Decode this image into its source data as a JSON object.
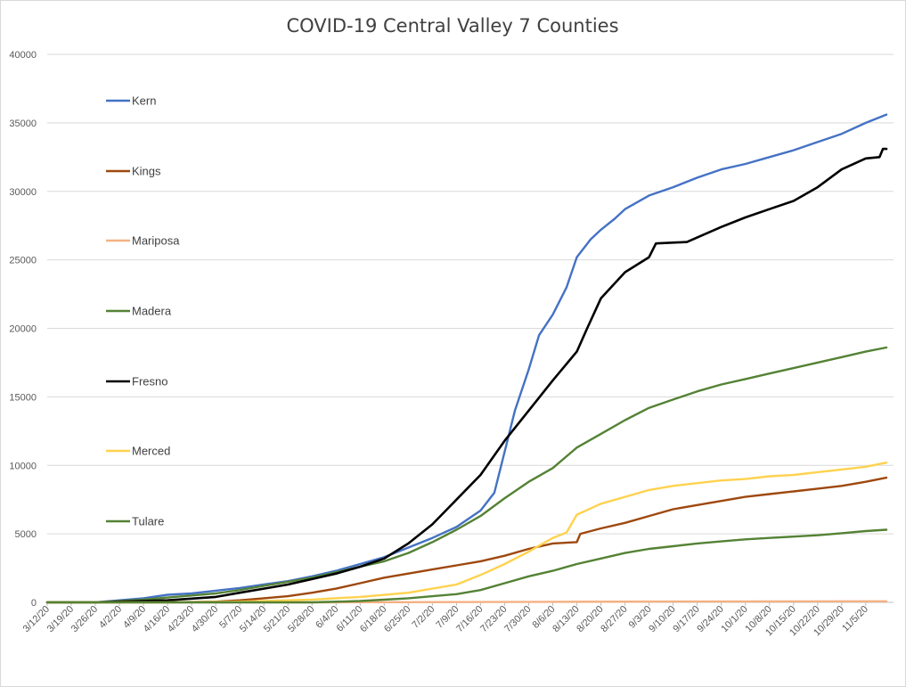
{
  "chart_data": {
    "type": "line",
    "title": "COVID-19 Central Valley 7 Counties",
    "xlabel": "",
    "ylabel": "",
    "ylim": [
      0,
      40000
    ],
    "yticks": [
      0,
      5000,
      10000,
      15000,
      20000,
      25000,
      30000,
      35000,
      40000
    ],
    "x_start": "3/12/20",
    "x_end": "11/11/20",
    "xtick_labels": [
      "3/12/20",
      "3/19/20",
      "3/26/20",
      "4/2/20",
      "4/9/20",
      "4/16/20",
      "4/23/20",
      "4/30/20",
      "5/7/20",
      "5/14/20",
      "5/21/20",
      "5/28/20",
      "6/4/20",
      "6/11/20",
      "6/18/20",
      "6/25/20",
      "7/2/20",
      "7/9/20",
      "7/16/20",
      "7/23/20",
      "7/30/20",
      "8/6/20",
      "8/13/20",
      "8/20/20",
      "8/27/20",
      "9/3/20",
      "9/10/20",
      "9/17/20",
      "9/24/20",
      "10/1/20",
      "10/8/20",
      "10/15/20",
      "10/22/20",
      "10/29/20",
      "11/5/20"
    ],
    "grid": true,
    "legend_position": "left-inside",
    "series": [
      {
        "name": "Kern",
        "color": "#4472c4",
        "points": [
          [
            "3/12/20",
            0
          ],
          [
            "3/26/20",
            0
          ],
          [
            "4/2/20",
            150
          ],
          [
            "4/9/20",
            300
          ],
          [
            "4/16/20",
            550
          ],
          [
            "4/23/20",
            650
          ],
          [
            "4/30/20",
            850
          ],
          [
            "5/7/20",
            1050
          ],
          [
            "5/14/20",
            1300
          ],
          [
            "5/21/20",
            1550
          ],
          [
            "5/28/20",
            1900
          ],
          [
            "6/4/20",
            2300
          ],
          [
            "6/11/20",
            2800
          ],
          [
            "6/18/20",
            3300
          ],
          [
            "6/25/20",
            4000
          ],
          [
            "7/2/20",
            4700
          ],
          [
            "7/9/20",
            5500
          ],
          [
            "7/16/20",
            6700
          ],
          [
            "7/20/20",
            8000
          ],
          [
            "7/23/20",
            11000
          ],
          [
            "7/26/20",
            14000
          ],
          [
            "7/30/20",
            17000
          ],
          [
            "8/2/20",
            19500
          ],
          [
            "8/6/20",
            21000
          ],
          [
            "8/10/20",
            23000
          ],
          [
            "8/13/20",
            25200
          ],
          [
            "8/17/20",
            26500
          ],
          [
            "8/20/20",
            27200
          ],
          [
            "8/24/20",
            28000
          ],
          [
            "8/27/20",
            28700
          ],
          [
            "9/3/20",
            29700
          ],
          [
            "9/10/20",
            30300
          ],
          [
            "9/17/20",
            31000
          ],
          [
            "9/24/20",
            31600
          ],
          [
            "10/1/20",
            32000
          ],
          [
            "10/8/20",
            32500
          ],
          [
            "10/15/20",
            33000
          ],
          [
            "10/22/20",
            33600
          ],
          [
            "10/29/20",
            34200
          ],
          [
            "11/5/20",
            35000
          ],
          [
            "11/11/20",
            35600
          ]
        ]
      },
      {
        "name": "Kings",
        "color": "#9e480e",
        "points": [
          [
            "3/12/20",
            0
          ],
          [
            "4/16/20",
            0
          ],
          [
            "4/30/20",
            50
          ],
          [
            "5/7/20",
            150
          ],
          [
            "5/14/20",
            300
          ],
          [
            "5/21/20",
            450
          ],
          [
            "5/28/20",
            700
          ],
          [
            "6/4/20",
            1000
          ],
          [
            "6/11/20",
            1400
          ],
          [
            "6/18/20",
            1800
          ],
          [
            "6/25/20",
            2100
          ],
          [
            "7/2/20",
            2400
          ],
          [
            "7/9/20",
            2700
          ],
          [
            "7/16/20",
            3000
          ],
          [
            "7/23/20",
            3400
          ],
          [
            "7/30/20",
            3900
          ],
          [
            "8/6/20",
            4300
          ],
          [
            "8/13/20",
            4400
          ],
          [
            "8/14/20",
            5000
          ],
          [
            "8/20/20",
            5400
          ],
          [
            "8/27/20",
            5800
          ],
          [
            "9/3/20",
            6300
          ],
          [
            "9/10/20",
            6800
          ],
          [
            "9/17/20",
            7100
          ],
          [
            "9/24/20",
            7400
          ],
          [
            "10/1/20",
            7700
          ],
          [
            "10/8/20",
            7900
          ],
          [
            "10/15/20",
            8100
          ],
          [
            "10/22/20",
            8300
          ],
          [
            "10/29/20",
            8500
          ],
          [
            "11/5/20",
            8800
          ],
          [
            "11/11/20",
            9100
          ]
        ]
      },
      {
        "name": "Mariposa",
        "color": "#f4b183",
        "points": [
          [
            "3/12/20",
            0
          ],
          [
            "5/28/20",
            0
          ],
          [
            "7/9/20",
            20
          ],
          [
            "8/6/20",
            40
          ],
          [
            "9/10/20",
            60
          ],
          [
            "10/15/20",
            70
          ],
          [
            "11/11/20",
            80
          ]
        ]
      },
      {
        "name": "Madera",
        "color": "#548235",
        "points": [
          [
            "3/12/20",
            0
          ],
          [
            "3/26/20",
            0
          ],
          [
            "4/2/20",
            100
          ],
          [
            "4/9/20",
            200
          ],
          [
            "4/16/20",
            350
          ],
          [
            "4/23/20",
            500
          ],
          [
            "4/30/20",
            650
          ],
          [
            "5/7/20",
            900
          ],
          [
            "5/14/20",
            1200
          ],
          [
            "5/21/20",
            1500
          ],
          [
            "5/28/20",
            1800
          ],
          [
            "6/4/20",
            2200
          ],
          [
            "6/11/20",
            2600
          ],
          [
            "6/18/20",
            3000
          ],
          [
            "6/25/20",
            3600
          ],
          [
            "7/2/20",
            4400
          ],
          [
            "7/9/20",
            5300
          ],
          [
            "7/16/20",
            6300
          ],
          [
            "7/23/20",
            7600
          ],
          [
            "7/30/20",
            8800
          ],
          [
            "8/6/20",
            9800
          ],
          [
            "8/13/20",
            11300
          ],
          [
            "8/20/20",
            12300
          ],
          [
            "8/27/20",
            13300
          ],
          [
            "9/3/20",
            14200
          ],
          [
            "9/10/20",
            14800
          ],
          [
            "9/17/20",
            15400
          ],
          [
            "9/24/20",
            15900
          ],
          [
            "10/1/20",
            16300
          ],
          [
            "10/8/20",
            16700
          ],
          [
            "10/15/20",
            17100
          ],
          [
            "10/22/20",
            17500
          ],
          [
            "10/29/20",
            17900
          ],
          [
            "11/5/20",
            18300
          ],
          [
            "11/11/20",
            18600
          ]
        ]
      },
      {
        "name": "Fresno",
        "color": "#000000",
        "points": [
          [
            "3/12/20",
            0
          ],
          [
            "3/26/20",
            0
          ],
          [
            "4/2/20",
            50
          ],
          [
            "4/16/20",
            150
          ],
          [
            "4/30/20",
            400
          ],
          [
            "5/7/20",
            700
          ],
          [
            "5/14/20",
            1000
          ],
          [
            "5/21/20",
            1300
          ],
          [
            "5/28/20",
            1700
          ],
          [
            "6/4/20",
            2100
          ],
          [
            "6/11/20",
            2600
          ],
          [
            "6/18/20",
            3200
          ],
          [
            "6/25/20",
            4300
          ],
          [
            "7/2/20",
            5700
          ],
          [
            "7/9/20",
            7500
          ],
          [
            "7/16/20",
            9300
          ],
          [
            "7/23/20",
            11800
          ],
          [
            "7/30/20",
            14000
          ],
          [
            "8/6/20",
            16200
          ],
          [
            "8/13/20",
            18300
          ],
          [
            "8/16/20",
            20000
          ],
          [
            "8/20/20",
            22200
          ],
          [
            "8/27/20",
            24100
          ],
          [
            "9/3/20",
            25200
          ],
          [
            "9/5/20",
            26200
          ],
          [
            "9/14/20",
            26300
          ],
          [
            "9/24/20",
            27400
          ],
          [
            "10/1/20",
            28100
          ],
          [
            "10/8/20",
            28700
          ],
          [
            "10/15/20",
            29300
          ],
          [
            "10/22/20",
            30300
          ],
          [
            "10/29/20",
            31600
          ],
          [
            "11/5/20",
            32400
          ],
          [
            "11/9/20",
            32500
          ],
          [
            "11/10/20",
            33100
          ],
          [
            "11/11/20",
            33100
          ]
        ]
      },
      {
        "name": "Merced",
        "color": "#ffd24f",
        "points": [
          [
            "3/12/20",
            0
          ],
          [
            "4/16/20",
            0
          ],
          [
            "5/7/20",
            50
          ],
          [
            "5/28/20",
            200
          ],
          [
            "6/11/20",
            400
          ],
          [
            "6/25/20",
            700
          ],
          [
            "7/9/20",
            1300
          ],
          [
            "7/16/20",
            2000
          ],
          [
            "7/23/20",
            2800
          ],
          [
            "7/30/20",
            3700
          ],
          [
            "8/6/20",
            4700
          ],
          [
            "8/10/20",
            5100
          ],
          [
            "8/13/20",
            6400
          ],
          [
            "8/20/20",
            7200
          ],
          [
            "8/27/20",
            7700
          ],
          [
            "9/3/20",
            8200
          ],
          [
            "9/10/20",
            8500
          ],
          [
            "9/17/20",
            8700
          ],
          [
            "9/24/20",
            8900
          ],
          [
            "10/1/20",
            9000
          ],
          [
            "10/8/20",
            9200
          ],
          [
            "10/15/20",
            9300
          ],
          [
            "10/22/20",
            9500
          ],
          [
            "10/29/20",
            9700
          ],
          [
            "11/5/20",
            9900
          ],
          [
            "11/11/20",
            10200
          ]
        ]
      },
      {
        "name": "Tulare",
        "color": "#548235",
        "points": [
          [
            "3/12/20",
            0
          ],
          [
            "5/28/20",
            0
          ],
          [
            "6/11/20",
            100
          ],
          [
            "6/25/20",
            300
          ],
          [
            "7/9/20",
            600
          ],
          [
            "7/16/20",
            900
          ],
          [
            "7/23/20",
            1400
          ],
          [
            "7/30/20",
            1900
          ],
          [
            "8/6/20",
            2300
          ],
          [
            "8/13/20",
            2800
          ],
          [
            "8/20/20",
            3200
          ],
          [
            "8/27/20",
            3600
          ],
          [
            "9/3/20",
            3900
          ],
          [
            "9/10/20",
            4100
          ],
          [
            "9/17/20",
            4300
          ],
          [
            "9/24/20",
            4450
          ],
          [
            "10/1/20",
            4600
          ],
          [
            "10/8/20",
            4700
          ],
          [
            "10/15/20",
            4800
          ],
          [
            "10/22/20",
            4900
          ],
          [
            "10/29/20",
            5050
          ],
          [
            "11/5/20",
            5200
          ],
          [
            "11/11/20",
            5300
          ]
        ]
      }
    ]
  }
}
